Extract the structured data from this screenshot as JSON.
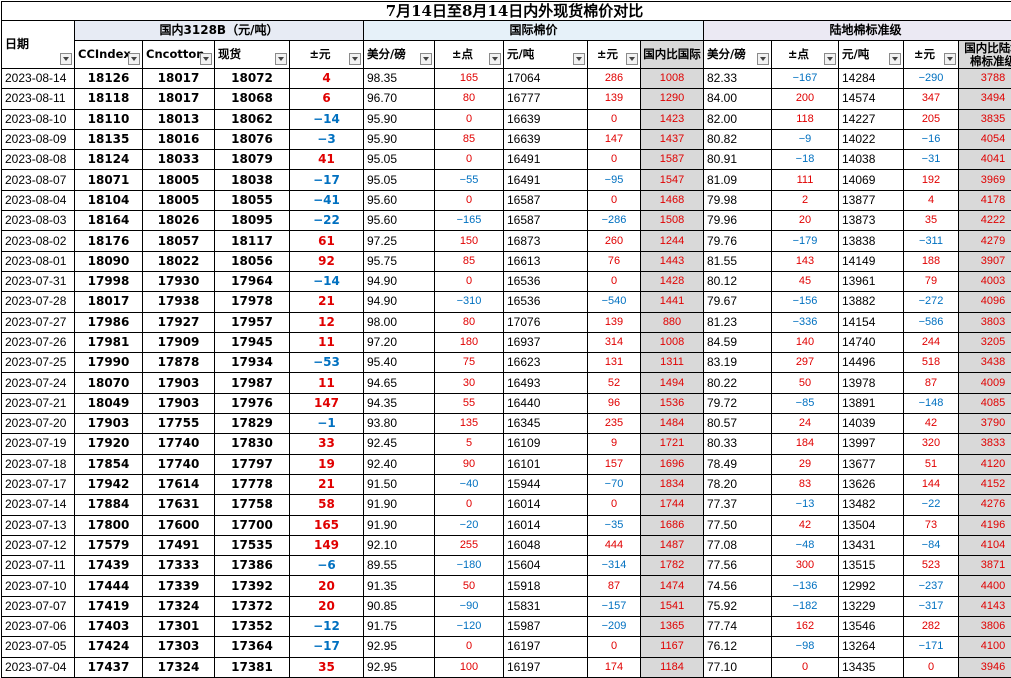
{
  "title": "7月14日至8月14日内外现货棉价对比",
  "groups": {
    "domestic": "国内3128B（元/吨）",
    "international": "国际棉价",
    "land": "陆地棉标准级"
  },
  "headers": [
    "日期",
    "CCIndex",
    "Cncotton",
    "现货",
    "±元",
    "美分/磅",
    "±点",
    "元/吨",
    "±元",
    "国内比国际",
    "美分/磅",
    "±点",
    "元/吨",
    "±元",
    "国内比陆地棉标准级"
  ],
  "colors": {
    "positive": "#e00000",
    "negative": "#0070c0",
    "gray": "#d9d9d9"
  },
  "rows": [
    [
      "2023-08-14",
      "18126",
      "18017",
      "18072",
      "4",
      "98.35",
      "165",
      "17064",
      "286",
      "1008",
      "82.33",
      "-167",
      "14284",
      "-290",
      "3788"
    ],
    [
      "2023-08-11",
      "18118",
      "18017",
      "18068",
      "6",
      "96.70",
      "80",
      "16777",
      "139",
      "1290",
      "84.00",
      "200",
      "14574",
      "347",
      "3494"
    ],
    [
      "2023-08-10",
      "18110",
      "18013",
      "18062",
      "-14",
      "95.90",
      "0",
      "16639",
      "0",
      "1423",
      "82.00",
      "118",
      "14227",
      "205",
      "3835"
    ],
    [
      "2023-08-09",
      "18135",
      "18016",
      "18076",
      "-3",
      "95.90",
      "85",
      "16639",
      "147",
      "1437",
      "80.82",
      "-9",
      "14022",
      "-16",
      "4054"
    ],
    [
      "2023-08-08",
      "18124",
      "18033",
      "18079",
      "41",
      "95.05",
      "0",
      "16491",
      "0",
      "1587",
      "80.91",
      "-18",
      "14038",
      "-31",
      "4041"
    ],
    [
      "2023-08-07",
      "18071",
      "18005",
      "18038",
      "-17",
      "95.05",
      "-55",
      "16491",
      "-95",
      "1547",
      "81.09",
      "111",
      "14069",
      "192",
      "3969"
    ],
    [
      "2023-08-04",
      "18104",
      "18005",
      "18055",
      "-41",
      "95.60",
      "0",
      "16587",
      "0",
      "1468",
      "79.98",
      "2",
      "13877",
      "4",
      "4178"
    ],
    [
      "2023-08-03",
      "18164",
      "18026",
      "18095",
      "-22",
      "95.60",
      "-165",
      "16587",
      "-286",
      "1508",
      "79.96",
      "20",
      "13873",
      "35",
      "4222"
    ],
    [
      "2023-08-02",
      "18176",
      "18057",
      "18117",
      "61",
      "97.25",
      "150",
      "16873",
      "260",
      "1244",
      "79.76",
      "-179",
      "13838",
      "-311",
      "4279"
    ],
    [
      "2023-08-01",
      "18090",
      "18022",
      "18056",
      "92",
      "95.75",
      "85",
      "16613",
      "76",
      "1443",
      "81.55",
      "143",
      "14149",
      "188",
      "3907"
    ],
    [
      "2023-07-31",
      "17998",
      "17930",
      "17964",
      "-14",
      "94.90",
      "0",
      "16536",
      "0",
      "1428",
      "80.12",
      "45",
      "13961",
      "79",
      "4003"
    ],
    [
      "2023-07-28",
      "18017",
      "17938",
      "17978",
      "21",
      "94.90",
      "-310",
      "16536",
      "-540",
      "1441",
      "79.67",
      "-156",
      "13882",
      "-272",
      "4096"
    ],
    [
      "2023-07-27",
      "17986",
      "17927",
      "17957",
      "12",
      "98.00",
      "80",
      "17076",
      "139",
      "880",
      "81.23",
      "-336",
      "14154",
      "-586",
      "3803"
    ],
    [
      "2023-07-26",
      "17981",
      "17909",
      "17945",
      "11",
      "97.20",
      "180",
      "16937",
      "314",
      "1008",
      "84.59",
      "140",
      "14740",
      "244",
      "3205"
    ],
    [
      "2023-07-25",
      "17990",
      "17878",
      "17934",
      "-53",
      "95.40",
      "75",
      "16623",
      "131",
      "1311",
      "83.19",
      "297",
      "14496",
      "518",
      "3438"
    ],
    [
      "2023-07-24",
      "18070",
      "17903",
      "17987",
      "11",
      "94.65",
      "30",
      "16493",
      "52",
      "1494",
      "80.22",
      "50",
      "13978",
      "87",
      "4009"
    ],
    [
      "2023-07-21",
      "18049",
      "17903",
      "17976",
      "147",
      "94.35",
      "55",
      "16440",
      "96",
      "1536",
      "79.72",
      "-85",
      "13891",
      "-148",
      "4085"
    ],
    [
      "2023-07-20",
      "17903",
      "17755",
      "17829",
      "-1",
      "93.80",
      "135",
      "16345",
      "235",
      "1484",
      "80.57",
      "24",
      "14039",
      "42",
      "3790"
    ],
    [
      "2023-07-19",
      "17920",
      "17740",
      "17830",
      "33",
      "92.45",
      "5",
      "16109",
      "9",
      "1721",
      "80.33",
      "184",
      "13997",
      "320",
      "3833"
    ],
    [
      "2023-07-18",
      "17854",
      "17740",
      "17797",
      "19",
      "92.40",
      "90",
      "16101",
      "157",
      "1696",
      "78.49",
      "29",
      "13677",
      "51",
      "4120"
    ],
    [
      "2023-07-17",
      "17942",
      "17614",
      "17778",
      "21",
      "91.50",
      "-40",
      "15944",
      "-70",
      "1834",
      "78.20",
      "83",
      "13626",
      "144",
      "4152"
    ],
    [
      "2023-07-14",
      "17884",
      "17631",
      "17758",
      "58",
      "91.90",
      "0",
      "16014",
      "0",
      "1744",
      "77.37",
      "-13",
      "13482",
      "-22",
      "4276"
    ],
    [
      "2023-07-13",
      "17800",
      "17600",
      "17700",
      "165",
      "91.90",
      "-20",
      "16014",
      "-35",
      "1686",
      "77.50",
      "42",
      "13504",
      "73",
      "4196"
    ],
    [
      "2023-07-12",
      "17579",
      "17491",
      "17535",
      "149",
      "92.10",
      "255",
      "16048",
      "444",
      "1487",
      "77.08",
      "-48",
      "13431",
      "-84",
      "4104"
    ],
    [
      "2023-07-11",
      "17439",
      "17333",
      "17386",
      "-6",
      "89.55",
      "-180",
      "15604",
      "-314",
      "1782",
      "77.56",
      "300",
      "13515",
      "523",
      "3871"
    ],
    [
      "2023-07-10",
      "17444",
      "17339",
      "17392",
      "20",
      "91.35",
      "50",
      "15918",
      "87",
      "1474",
      "74.56",
      "-136",
      "12992",
      "-237",
      "4400"
    ],
    [
      "2023-07-07",
      "17419",
      "17324",
      "17372",
      "20",
      "90.85",
      "-90",
      "15831",
      "-157",
      "1541",
      "75.92",
      "-182",
      "13229",
      "-317",
      "4143"
    ],
    [
      "2023-07-06",
      "17403",
      "17301",
      "17352",
      "-12",
      "91.75",
      "-120",
      "15987",
      "-209",
      "1365",
      "77.74",
      "162",
      "13546",
      "282",
      "3806"
    ],
    [
      "2023-07-05",
      "17424",
      "17303",
      "17364",
      "-17",
      "92.95",
      "0",
      "16197",
      "0",
      "1167",
      "76.12",
      "-98",
      "13264",
      "-171",
      "4100"
    ],
    [
      "2023-07-04",
      "17437",
      "17324",
      "17381",
      "35",
      "92.95",
      "100",
      "16197",
      "174",
      "1184",
      "77.10",
      "0",
      "13435",
      "0",
      "3946"
    ]
  ]
}
